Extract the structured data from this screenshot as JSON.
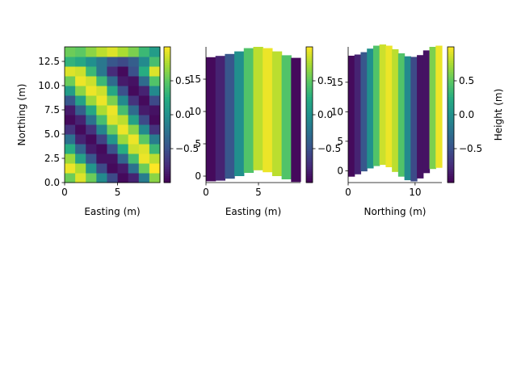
{
  "chart_data": [
    {
      "type": "heatmap",
      "xlabel": "Easting (m)",
      "ylabel": "Northing (m)",
      "xlim": [
        0,
        9
      ],
      "ylim": [
        0,
        14
      ],
      "xticks": [
        0,
        5
      ],
      "yticks": [
        0.0,
        2.5,
        5.0,
        7.5,
        10.0,
        12.5
      ],
      "xtick_labels": [
        "0",
        "5"
      ],
      "ytick_labels": [
        "0.0",
        "2.5",
        "5.0",
        "7.5",
        "10.0",
        "12.5"
      ],
      "colorbar": {
        "ticks": [
          -0.5,
          0.0,
          0.5
        ],
        "labels": [
          "−0.5",
          "0.0",
          "0.5"
        ],
        "range": [
          -1,
          1
        ],
        "label": ""
      },
      "z": [
        [
          0.55,
          0.9,
          0.55,
          -0.05,
          -0.55,
          -0.95,
          -0.8,
          -0.15,
          0.65
        ],
        [
          0.95,
          0.75,
          0.05,
          -0.55,
          -0.95,
          -0.85,
          -0.25,
          0.55,
          1.0
        ],
        [
          0.7,
          0.15,
          -0.45,
          -0.9,
          -0.9,
          -0.35,
          0.4,
          0.95,
          0.8
        ],
        [
          0.25,
          -0.35,
          -0.85,
          -0.95,
          -0.5,
          0.25,
          0.85,
          0.9,
          0.35
        ],
        [
          -0.25,
          -0.8,
          -0.95,
          -0.6,
          0.05,
          0.7,
          0.95,
          0.5,
          -0.15
        ],
        [
          -0.7,
          -0.95,
          -0.7,
          -0.1,
          0.55,
          0.95,
          0.65,
          -0.05,
          -0.7
        ],
        [
          -0.95,
          -0.8,
          -0.25,
          0.4,
          0.9,
          0.8,
          0.15,
          -0.55,
          -0.95
        ],
        [
          -0.85,
          -0.4,
          0.2,
          0.75,
          0.95,
          0.4,
          -0.3,
          -0.85,
          -0.9
        ],
        [
          -0.45,
          0.15,
          0.7,
          0.95,
          0.6,
          -0.05,
          -0.7,
          -0.95,
          -0.55
        ],
        [
          0.1,
          0.65,
          0.95,
          0.85,
          0.2,
          -0.5,
          -0.95,
          -0.8,
          -0.05
        ],
        [
          0.55,
          0.95,
          0.85,
          0.35,
          -0.3,
          -0.85,
          -0.9,
          -0.3,
          0.45
        ],
        [
          0.9,
          0.85,
          0.35,
          -0.2,
          -0.75,
          -0.95,
          -0.5,
          0.25,
          0.9
        ],
        [
          0.3,
          0.2,
          0.0,
          -0.2,
          -0.45,
          -0.55,
          -0.4,
          -0.05,
          0.4
        ],
        [
          0.55,
          0.5,
          0.65,
          0.8,
          0.9,
          0.75,
          0.6,
          0.35,
          0.1
        ]
      ]
    },
    {
      "type": "heatmap",
      "xlabel": "Easting (m)",
      "ylabel": "",
      "xlim": [
        0,
        9
      ],
      "ylim": [
        -1,
        20
      ],
      "xticks": [
        0,
        5
      ],
      "yticks": [
        0,
        5,
        10,
        15
      ],
      "xtick_labels": [
        "0",
        "5"
      ],
      "ytick_labels": [
        "0",
        "5",
        "10",
        "15"
      ],
      "colorbar": {
        "ticks": [
          -0.5,
          0.0,
          0.5
        ],
        "labels": [
          "−0.5",
          "0.0",
          "0.5"
        ],
        "range": [
          -1,
          1
        ],
        "label": ""
      },
      "columns": [
        -0.95,
        -0.8,
        -0.45,
        0.0,
        0.45,
        0.8,
        0.95,
        0.8,
        0.45,
        -0.95
      ],
      "top_edge": [
        18.4,
        18.6,
        18.9,
        19.3,
        19.8,
        20.0,
        19.8,
        19.3,
        18.7,
        18.3
      ],
      "bottom_edge": [
        -0.8,
        -0.7,
        -0.4,
        0.0,
        0.5,
        0.9,
        0.6,
        0.0,
        -0.5,
        -0.9
      ]
    },
    {
      "type": "heatmap",
      "xlabel": "Northing (m)",
      "ylabel": "",
      "xlim": [
        0,
        14
      ],
      "ylim": [
        -2,
        21
      ],
      "xticks": [
        0,
        10
      ],
      "yticks": [
        0,
        5,
        10,
        15
      ],
      "xtick_labels": [
        "0",
        "10"
      ],
      "ytick_labels": [
        "0",
        "5",
        "10",
        "15"
      ],
      "colorbar": {
        "ticks": [
          -0.5,
          0.0,
          0.5
        ],
        "labels": [
          "−0.5",
          "0.0",
          "0.5"
        ],
        "range": [
          -1,
          1
        ],
        "label": "Height (m)"
      },
      "columns": [
        -0.95,
        -0.8,
        -0.45,
        0.0,
        0.45,
        0.85,
        0.95,
        0.8,
        0.45,
        -0.05,
        -0.55,
        -0.9,
        -0.9,
        0.6,
        0.95
      ],
      "top_edge": [
        19.5,
        19.7,
        20.1,
        20.7,
        21.2,
        21.4,
        21.2,
        20.6,
        19.9,
        19.4,
        19.3,
        19.6,
        20.4,
        21.0,
        21.2
      ],
      "bottom_edge": [
        -1.0,
        -0.6,
        -0.1,
        0.4,
        0.8,
        1.0,
        0.6,
        -0.2,
        -1.0,
        -1.6,
        -1.8,
        -1.3,
        -0.4,
        0.3,
        0.5
      ]
    }
  ]
}
